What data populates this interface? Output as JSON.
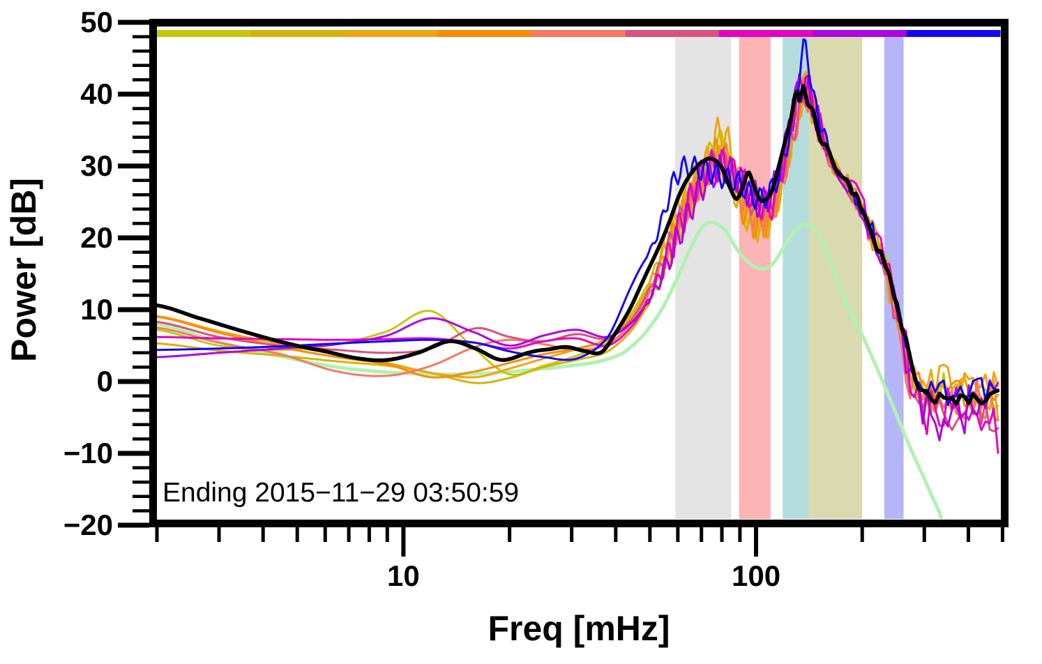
{
  "figure": {
    "ylabel": "Power [dB]",
    "xlabel": "Freq [mHz]",
    "annotation": "Ending 2015−11−29 03:50:59"
  },
  "chart_data": {
    "type": "line",
    "title": "",
    "xlabel": "Freq [mHz]",
    "ylabel": "Power [dB]",
    "x_scale": "log",
    "xlim": [
      2.0,
      490
    ],
    "ylim": [
      -20,
      50
    ],
    "grid": false,
    "legend": "none",
    "x_major_ticks": [
      10,
      100
    ],
    "x_major_tick_labels": [
      "10",
      "100"
    ],
    "x_minor_ticks": [
      2,
      3,
      4,
      5,
      6,
      7,
      8,
      9,
      20,
      30,
      40,
      50,
      60,
      70,
      80,
      90,
      200,
      300,
      400,
      500
    ],
    "y_major_ticks": [
      50,
      40,
      30,
      20,
      10,
      0,
      -10,
      -20
    ],
    "y_major_tick_labels": [
      "50",
      "40",
      "30",
      "20",
      "10",
      "0",
      "−10",
      "−20"
    ],
    "y_minor_step": 2,
    "annotation": "Ending 2015−11−29 03:50:59",
    "period_strip": {
      "description": "equal log-width time-period color segments along top of plot",
      "colors": [
        "#c6c80a",
        "#d5b30b",
        "#f0a410",
        "#fb8b04",
        "#f97763",
        "#d9527e",
        "#e304c1",
        "#ad06de",
        "#1208f4"
      ]
    },
    "highlight_bands": [
      {
        "name": "band-gray",
        "from_mhz": 59,
        "to_mhz": 85,
        "color": "#e4e4e4"
      },
      {
        "name": "band-pink",
        "from_mhz": 89.5,
        "to_mhz": 110,
        "color": "#fcb4b4"
      },
      {
        "name": "band-teal",
        "from_mhz": 119,
        "to_mhz": 141,
        "color": "#b5dcdc"
      },
      {
        "name": "band-olive",
        "from_mhz": 141,
        "to_mhz": 200,
        "color": "#dadab1"
      },
      {
        "name": "band-periwinkle",
        "from_mhz": 231,
        "to_mhz": 262,
        "color": "#b5b6f8"
      }
    ],
    "runs_common_freqs_mhz": [
      2.0,
      3,
      4.5,
      6.5,
      9,
      12,
      16,
      20,
      25,
      31,
      38,
      45,
      52,
      60,
      70,
      80,
      90,
      100,
      110,
      120,
      130,
      138,
      146,
      155,
      165,
      180,
      195,
      215,
      235,
      255,
      275,
      300,
      340,
      380,
      430,
      490
    ],
    "series": [
      {
        "name": "run-1-yellowgreen",
        "color": "#c6c80a",
        "width": 3,
        "wiggle": {
          "amp": 1.6,
          "period": 0.031,
          "phase": 0.0
        },
        "noise": {
          "amp": 2.6,
          "seed": 11
        },
        "values": [
          7.2,
          5.0,
          4.4,
          5.2,
          7.0,
          9.8,
          4.5,
          1.0,
          2.2,
          3.6,
          5.5,
          10,
          16,
          24,
          29.5,
          33.5,
          25.5,
          22.5,
          23.5,
          30,
          38.5,
          42,
          38.5,
          34.5,
          30.5,
          28,
          25.5,
          21,
          16,
          9,
          2,
          -1,
          -0.5,
          -1,
          -0.5,
          -1.5
        ]
      },
      {
        "name": "run-2-gold",
        "color": "#d5b30b",
        "width": 3,
        "wiggle": {
          "amp": 2.0,
          "period": 0.031,
          "phase": 0.9
        },
        "noise": {
          "amp": 2.8,
          "seed": 22
        },
        "values": [
          5.3,
          4.3,
          3.6,
          2.8,
          2.2,
          1.2,
          -0.2,
          0.5,
          2.0,
          3.0,
          4.2,
          7.5,
          13,
          21,
          27.5,
          31,
          24.5,
          21.5,
          22.5,
          28.5,
          36,
          40,
          37,
          33.5,
          29.5,
          27,
          24.5,
          20,
          15,
          8.5,
          1.5,
          -1.5,
          -1,
          -2,
          -1,
          -2
        ]
      },
      {
        "name": "run-3-orangeyellow",
        "color": "#f0a410",
        "width": 3,
        "wiggle": {
          "amp": 2.4,
          "period": 0.031,
          "phase": 1.8
        },
        "noise": {
          "amp": 3.0,
          "seed": 33
        },
        "values": [
          9.1,
          7.0,
          5.2,
          3.8,
          2.6,
          1.2,
          0.6,
          1.8,
          3.2,
          4.5,
          6.0,
          9.5,
          15.5,
          23,
          28.5,
          34.8,
          27,
          22.2,
          23.8,
          29.5,
          37,
          41,
          38,
          34,
          31,
          28.5,
          25.5,
          21.5,
          16.5,
          10,
          3,
          -0.5,
          0,
          -1.5,
          -0.2,
          -1
        ]
      },
      {
        "name": "run-4-orange",
        "color": "#fb8b04",
        "width": 3,
        "wiggle": {
          "amp": 2.2,
          "period": 0.031,
          "phase": 2.7
        },
        "noise": {
          "amp": 2.9,
          "seed": 44
        },
        "values": [
          9.0,
          6.8,
          4.8,
          3.4,
          2.4,
          0.6,
          1.4,
          2.6,
          3.8,
          4.6,
          5.8,
          9,
          14.5,
          22,
          28,
          32,
          25,
          21.8,
          23,
          29,
          36.5,
          40.5,
          37.5,
          34,
          30,
          27.5,
          25,
          20.5,
          15.5,
          9,
          2,
          -1,
          -1.5,
          -1,
          -2,
          -0.5
        ]
      },
      {
        "name": "run-5-salmon",
        "color": "#f97763",
        "width": 3,
        "wiggle": {
          "amp": 1.9,
          "period": 0.031,
          "phase": 3.5
        },
        "noise": {
          "amp": 3.2,
          "seed": 55
        },
        "values": [
          7.5,
          5.4,
          3.8,
          1.4,
          0.8,
          2.2,
          4.8,
          5.8,
          5.2,
          4.4,
          5.2,
          8.5,
          14,
          21.5,
          27.5,
          30.5,
          26,
          22.8,
          24,
          29,
          35.5,
          39.5,
          37,
          33,
          29.5,
          27,
          24.5,
          20,
          14.5,
          8,
          1,
          -2,
          -2.5,
          -3,
          -2.5,
          -3.5
        ]
      },
      {
        "name": "run-6-raspberry",
        "color": "#d9527e",
        "width": 3,
        "wiggle": {
          "amp": 1.7,
          "period": 0.031,
          "phase": 4.3
        },
        "noise": {
          "amp": 3.4,
          "seed": 66
        },
        "values": [
          8.3,
          6.2,
          5.0,
          4.4,
          4.0,
          4.6,
          7.4,
          6.2,
          5.6,
          6.6,
          6.0,
          9,
          14.8,
          22,
          28,
          31,
          27.5,
          24.2,
          25,
          30,
          36,
          40,
          37.5,
          33.5,
          30,
          27,
          25,
          20.5,
          15,
          8.5,
          0,
          -3,
          -3.5,
          -4.5,
          -3,
          -4
        ]
      },
      {
        "name": "run-7-magenta",
        "color": "#e304c1",
        "width": 3,
        "wiggle": {
          "amp": 2.4,
          "period": 0.031,
          "phase": 5.1
        },
        "noise": {
          "amp": 4.0,
          "seed": 77
        },
        "values": [
          6.2,
          6.0,
          5.9,
          5.8,
          5.9,
          6.0,
          5.4,
          4.6,
          5.6,
          6.0,
          5.0,
          8,
          13.5,
          21,
          28.5,
          30,
          28,
          25.5,
          24.5,
          31,
          39,
          41.5,
          38,
          34,
          30.5,
          27.5,
          25.5,
          21,
          15.5,
          9,
          1.5,
          -2.5,
          -4,
          -3.5,
          -4.5,
          -3
        ]
      },
      {
        "name": "run-8-purple",
        "color": "#ad06de",
        "width": 3,
        "wiggle": {
          "amp": 2.1,
          "period": 0.031,
          "phase": 0.4
        },
        "noise": {
          "amp": 3.8,
          "seed": 88
        },
        "values": [
          3.4,
          4.0,
          4.6,
          5.2,
          6.4,
          8.8,
          6.8,
          5.0,
          6.4,
          7.2,
          6.2,
          8.5,
          13,
          20,
          27,
          29.5,
          28,
          25,
          26,
          32,
          39.5,
          41,
          38,
          34,
          30,
          27,
          25,
          20.5,
          15,
          8.5,
          0.5,
          -3.5,
          -3,
          -4,
          -3,
          -3.5
        ]
      },
      {
        "name": "run-9-blue",
        "color": "#1208f4",
        "width": 3,
        "wiggle": {
          "amp": 1.6,
          "period": 0.031,
          "phase": 2.2
        },
        "noise": {
          "amp": 2.4,
          "seed": 99
        },
        "values": [
          4.4,
          4.6,
          4.9,
          5.3,
          5.6,
          5.8,
          5.4,
          4.2,
          3.4,
          3.2,
          6.2,
          14,
          20,
          29,
          29.5,
          28.5,
          27.5,
          25.5,
          26.5,
          31,
          40,
          46.5,
          39,
          35,
          30.5,
          28,
          25.5,
          21,
          16,
          9.5,
          2.5,
          -1,
          -1.5,
          -0.5,
          -1,
          -0.5
        ]
      }
    ],
    "mean_series": {
      "name": "mean-spectrum",
      "color": "#000000",
      "width": 5.5,
      "noise": {
        "amp": 1.0,
        "seed": 5
      },
      "points": [
        [
          2,
          10.6
        ],
        [
          2.6,
          8.9
        ],
        [
          3.5,
          7.0
        ],
        [
          4.7,
          5.3
        ],
        [
          6,
          4.2
        ],
        [
          7.5,
          3.2
        ],
        [
          9,
          3.0
        ],
        [
          11,
          4.0
        ],
        [
          13.5,
          5.6
        ],
        [
          16,
          4.6
        ],
        [
          19,
          3.0
        ],
        [
          23,
          4.1
        ],
        [
          26,
          4.5
        ],
        [
          29,
          4.8
        ],
        [
          33,
          4.2
        ],
        [
          36.5,
          4.1
        ],
        [
          40,
          6.8
        ],
        [
          44,
          10.2
        ],
        [
          48,
          14.2
        ],
        [
          52,
          17.8
        ],
        [
          56,
          21.5
        ],
        [
          61,
          26.3
        ],
        [
          66,
          29.2
        ],
        [
          71,
          30.7
        ],
        [
          75,
          31.0
        ],
        [
          80,
          29.8
        ],
        [
          84,
          27.2
        ],
        [
          88,
          25.4
        ],
        [
          92,
          27.2
        ],
        [
          95,
          29.2
        ],
        [
          99,
          27.0
        ],
        [
          103,
          25.2
        ],
        [
          107,
          25.4
        ],
        [
          111,
          26.6
        ],
        [
          116,
          30.0
        ],
        [
          121,
          33.5
        ],
        [
          126,
          36.8
        ],
        [
          130,
          40.5
        ],
        [
          133,
          39.0
        ],
        [
          136,
          41.2
        ],
        [
          140,
          38.6
        ],
        [
          145,
          37.8
        ],
        [
          149,
          35.3
        ],
        [
          153,
          33.2
        ],
        [
          158,
          33.0
        ],
        [
          163,
          31.3
        ],
        [
          169,
          29.4
        ],
        [
          175,
          28.6
        ],
        [
          182,
          27.9
        ],
        [
          188,
          26.1
        ],
        [
          194,
          25.6
        ],
        [
          200,
          23.4
        ],
        [
          208,
          22.0
        ],
        [
          216,
          20.2
        ],
        [
          225,
          18.0
        ],
        [
          234,
          15.8
        ],
        [
          243,
          13.2
        ],
        [
          252,
          10.5
        ],
        [
          262,
          7.0
        ],
        [
          272,
          3.5
        ],
        [
          282,
          0.5
        ],
        [
          292,
          -1.2
        ],
        [
          305,
          -2.0
        ],
        [
          325,
          -2.4
        ],
        [
          350,
          -2.2
        ],
        [
          375,
          -2.6
        ],
        [
          405,
          -2.2
        ],
        [
          435,
          -2.4
        ],
        [
          465,
          -2.2
        ],
        [
          490,
          -1.9
        ]
      ]
    },
    "reference_series": {
      "name": "quiet-reference-spectrum",
      "color": "#b0f2b0",
      "width": 5,
      "points": [
        [
          2,
          8.0
        ],
        [
          3,
          5.5
        ],
        [
          4.5,
          3.5
        ],
        [
          6.5,
          2.0
        ],
        [
          9,
          1.3
        ],
        [
          13,
          1.0
        ],
        [
          18,
          1.2
        ],
        [
          24,
          1.7
        ],
        [
          30,
          2.2
        ],
        [
          36,
          2.8
        ],
        [
          42,
          4.0
        ],
        [
          48,
          6.5
        ],
        [
          54,
          10.0
        ],
        [
          60,
          14.5
        ],
        [
          66,
          19.0
        ],
        [
          71,
          21.7
        ],
        [
          76,
          22.1
        ],
        [
          82,
          21.0
        ],
        [
          88,
          18.5
        ],
        [
          94,
          16.8
        ],
        [
          100,
          15.9
        ],
        [
          105,
          15.7
        ],
        [
          110,
          16.1
        ],
        [
          116,
          17.6
        ],
        [
          124,
          19.9
        ],
        [
          132,
          21.5
        ],
        [
          138,
          21.9
        ],
        [
          145,
          21.4
        ],
        [
          152,
          20.0
        ],
        [
          160,
          17.5
        ],
        [
          170,
          14.0
        ],
        [
          180,
          11.0
        ],
        [
          195,
          7.5
        ],
        [
          215,
          3.0
        ],
        [
          240,
          -2.5
        ],
        [
          270,
          -8.5
        ],
        [
          300,
          -13.5
        ],
        [
          330,
          -18.0
        ],
        [
          350,
          -21.5
        ]
      ]
    }
  }
}
